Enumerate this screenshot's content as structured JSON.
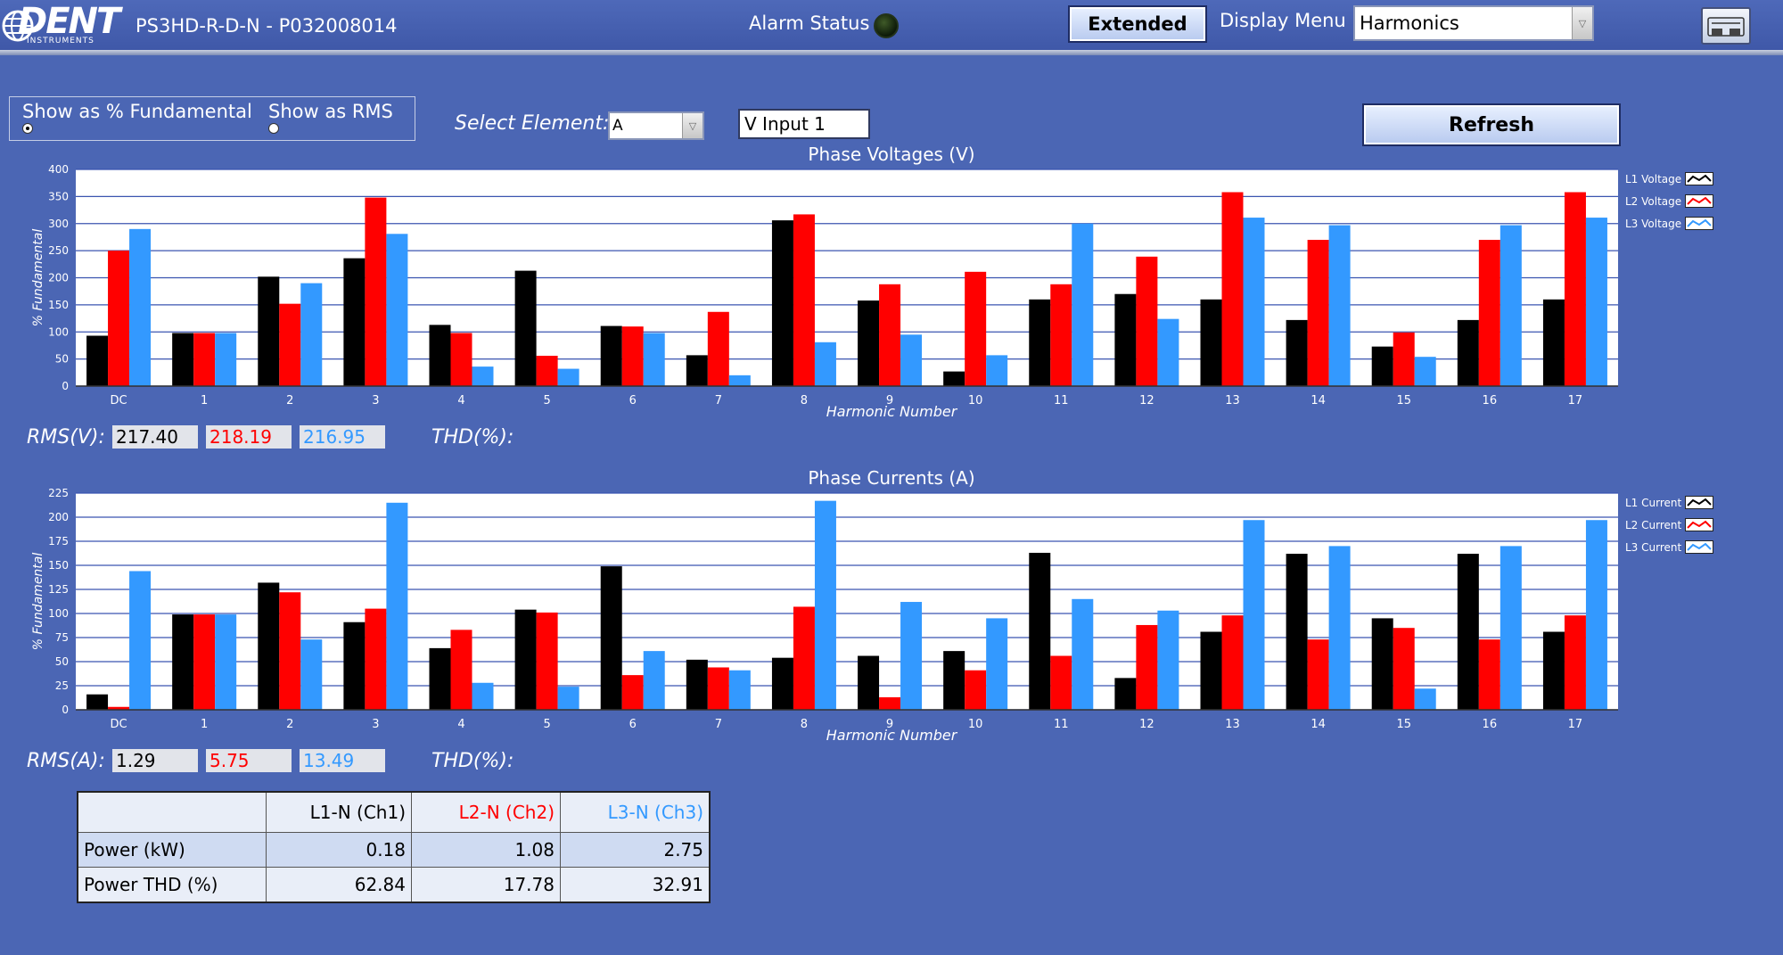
{
  "header": {
    "logo_text": "DENT",
    "logo_sub": "INSTRUMENTS",
    "device_title": "PS3HD-R-D-N - P032008014",
    "alarm_label": "Alarm Status",
    "extended_button": "Extended",
    "display_menu_label": "Display Menu",
    "display_menu_value": "Harmonics"
  },
  "controls": {
    "radio_fundamental": "Show as % Fundamental",
    "radio_rms": "Show as RMS",
    "selected_radio": "fundamental",
    "select_element_label": "Select Element:",
    "select_element_value": "A",
    "input_value": "V Input 1",
    "refresh_button": "Refresh"
  },
  "voltage": {
    "rms_label": "RMS(V):",
    "rms_values": [
      "217.40",
      "218.19",
      "216.95"
    ],
    "thd_label": "THD(%):"
  },
  "current": {
    "rms_label": "RMS(A):",
    "rms_values": [
      "1.29",
      "5.75",
      "13.49"
    ],
    "thd_label": "THD(%):"
  },
  "colors": {
    "l1": "#000000",
    "l2": "#ff0000",
    "l3": "#3399ff",
    "background": "#4b66b4"
  },
  "chart_data": [
    {
      "type": "bar",
      "title": "Phase Voltages (V)",
      "xlabel": "Harmonic Number",
      "ylabel": "% Fundamental",
      "ylim": [
        0,
        400
      ],
      "yticks": [
        0,
        50,
        100,
        150,
        200,
        250,
        300,
        350,
        400
      ],
      "grid": true,
      "legend_position": "right",
      "categories": [
        "DC",
        "1",
        "2",
        "3",
        "4",
        "5",
        "6",
        "7",
        "8",
        "9",
        "10",
        "11",
        "12",
        "13",
        "14",
        "15",
        "16",
        "17"
      ],
      "series": [
        {
          "name": "L1 Voltage",
          "color": "#000000",
          "values": [
            93,
            98,
            202,
            236,
            113,
            213,
            111,
            57,
            306,
            158,
            27,
            160,
            170,
            160,
            122,
            73,
            122,
            160
          ]
        },
        {
          "name": "L2 Voltage",
          "color": "#ff0000",
          "values": [
            250,
            98,
            152,
            348,
            98,
            56,
            110,
            137,
            317,
            188,
            211,
            188,
            239,
            358,
            270,
            99,
            270,
            358
          ]
        },
        {
          "name": "L3 Voltage",
          "color": "#3399ff",
          "values": [
            290,
            98,
            190,
            281,
            36,
            32,
            98,
            20,
            81,
            95,
            57,
            300,
            124,
            311,
            297,
            54,
            297,
            311
          ]
        }
      ]
    },
    {
      "type": "bar",
      "title": "Phase Currents (A)",
      "xlabel": "Harmonic Number",
      "ylabel": "% Fundamental",
      "ylim": [
        0,
        225
      ],
      "yticks": [
        0,
        25,
        50,
        75,
        100,
        125,
        150,
        175,
        200,
        225
      ],
      "grid": true,
      "legend_position": "right",
      "categories": [
        "DC",
        "1",
        "2",
        "3",
        "4",
        "5",
        "6",
        "7",
        "8",
        "9",
        "10",
        "11",
        "12",
        "13",
        "14",
        "15",
        "16",
        "17"
      ],
      "series": [
        {
          "name": "L1 Current",
          "color": "#000000",
          "values": [
            16,
            99,
            132,
            91,
            64,
            104,
            149,
            52,
            54,
            56,
            61,
            163,
            33,
            81,
            162,
            95,
            162,
            81
          ]
        },
        {
          "name": "L2 Current",
          "color": "#ff0000",
          "values": [
            3,
            99,
            122,
            105,
            83,
            101,
            36,
            44,
            107,
            13,
            41,
            56,
            88,
            98,
            73,
            85,
            73,
            98
          ]
        },
        {
          "name": "L3 Current",
          "color": "#3399ff",
          "values": [
            144,
            99,
            73,
            215,
            28,
            24,
            61,
            41,
            217,
            112,
            95,
            115,
            103,
            197,
            170,
            22,
            170,
            197
          ]
        }
      ]
    }
  ],
  "table": {
    "headers": [
      "",
      "L1-N (Ch1)",
      "L2-N (Ch2)",
      "L3-N (Ch3)"
    ],
    "rows": [
      {
        "label": "Power (kW)",
        "values": [
          "0.18",
          "1.08",
          "2.75"
        ]
      },
      {
        "label": "Power THD (%)",
        "values": [
          "62.84",
          "17.78",
          "32.91"
        ]
      }
    ]
  }
}
